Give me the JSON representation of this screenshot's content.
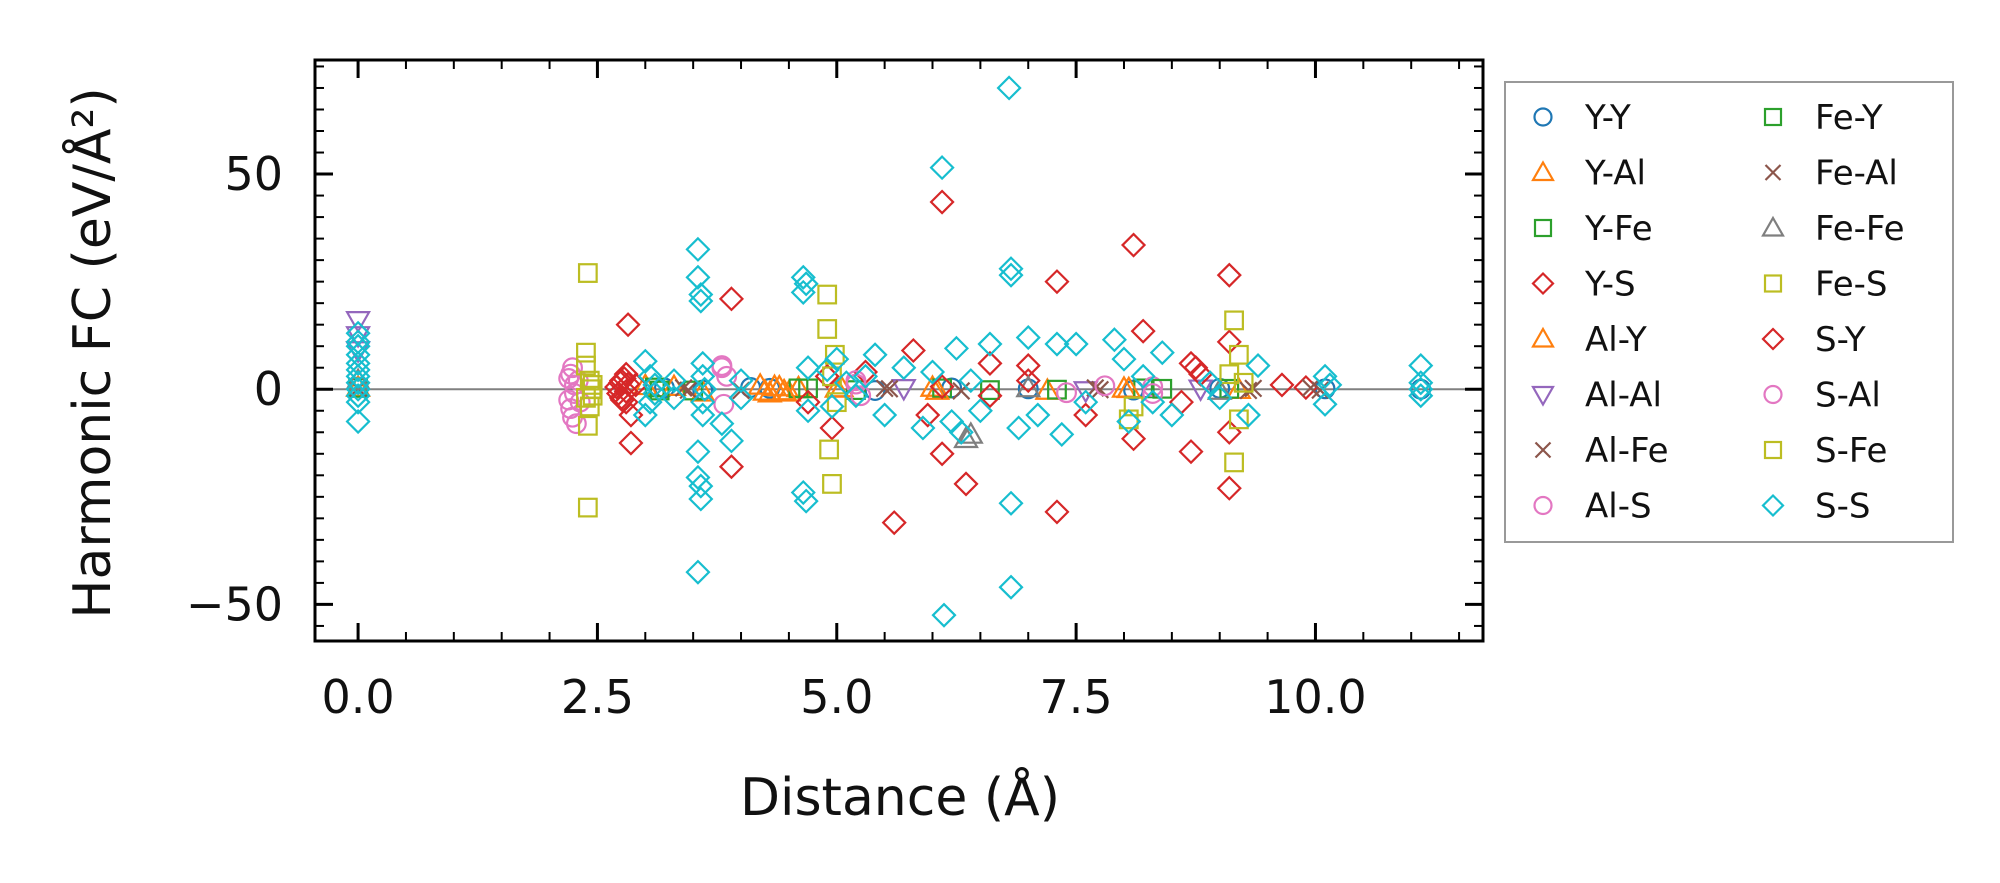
{
  "chart_data": {
    "type": "scatter",
    "xlabel": "Distance (Å)",
    "ylabel": "Harmonic FC (eV/Å²)",
    "xlim": [
      -0.45,
      11.75
    ],
    "ylim": [
      -58.5,
      76.5
    ],
    "xticks": [
      0.0,
      2.5,
      5.0,
      7.5,
      10.0
    ],
    "xtick_labels": [
      "0.0",
      "2.5",
      "5.0",
      "7.5",
      "10.0"
    ],
    "yticks": [
      -50,
      0,
      50
    ],
    "ytick_labels": [
      "−50",
      "0",
      "50"
    ],
    "zero_line": true,
    "legend_position": "outside-right",
    "series": [
      {
        "name": "Y-Y",
        "marker": "circle",
        "color": "#1f77b4",
        "points": [
          [
            0.0,
            0.5
          ],
          [
            3.2,
            0.3
          ],
          [
            3.6,
            -0.2
          ],
          [
            4.1,
            0.4
          ],
          [
            4.3,
            0.2
          ],
          [
            5.4,
            -0.3
          ],
          [
            6.2,
            0.3
          ],
          [
            7.0,
            0.1
          ],
          [
            8.1,
            -0.2
          ],
          [
            9.0,
            0.2
          ],
          [
            10.1,
            0.1
          ],
          [
            11.1,
            0.0
          ]
        ]
      },
      {
        "name": "Y-Al",
        "marker": "triangle-up",
        "color": "#ff7f0e",
        "points": [
          [
            0.0,
            0.4
          ],
          [
            3.0,
            0.8
          ],
          [
            3.3,
            0.6
          ],
          [
            3.6,
            -0.7
          ],
          [
            4.2,
            0.9
          ],
          [
            4.3,
            -0.9
          ],
          [
            4.4,
            0.5
          ],
          [
            4.5,
            -0.7
          ],
          [
            4.6,
            0.3
          ],
          [
            5.0,
            0.2
          ],
          [
            6.0,
            0.4
          ],
          [
            7.2,
            -0.3
          ],
          [
            8.0,
            0.2
          ],
          [
            9.2,
            -0.1
          ]
        ]
      },
      {
        "name": "Y-Fe",
        "marker": "square",
        "color": "#2ca02c",
        "points": [
          [
            0.0,
            0.3
          ],
          [
            3.1,
            0.4
          ],
          [
            3.5,
            -0.3
          ],
          [
            4.6,
            0.2
          ],
          [
            5.2,
            -0.2
          ],
          [
            6.1,
            0.2
          ],
          [
            7.3,
            -0.1
          ],
          [
            8.2,
            0.2
          ],
          [
            9.1,
            0.1
          ]
        ]
      },
      {
        "name": "Y-S",
        "marker": "diamond",
        "color": "#d62728",
        "points": [
          [
            2.75,
            2.0
          ],
          [
            2.75,
            -2.0
          ],
          [
            2.8,
            3.5
          ],
          [
            2.8,
            -3.0
          ],
          [
            2.82,
            15.0
          ],
          [
            2.85,
            -6.0
          ],
          [
            2.85,
            -12.5
          ],
          [
            2.9,
            1.0
          ],
          [
            3.9,
            21.0
          ],
          [
            3.9,
            -18.0
          ],
          [
            4.9,
            3.0
          ],
          [
            4.95,
            -9.0
          ],
          [
            5.3,
            4.0
          ],
          [
            5.6,
            -31.0
          ],
          [
            5.8,
            9.0
          ],
          [
            5.95,
            -6.0
          ],
          [
            6.1,
            43.5
          ],
          [
            6.1,
            -15.0
          ],
          [
            6.35,
            -22.0
          ],
          [
            6.6,
            6.0
          ],
          [
            7.0,
            5.5
          ],
          [
            7.3,
            25.0
          ],
          [
            7.3,
            -28.5
          ],
          [
            7.6,
            -6.0
          ],
          [
            8.1,
            33.5
          ],
          [
            8.1,
            -11.5
          ],
          [
            8.2,
            13.5
          ],
          [
            8.7,
            -14.5
          ],
          [
            8.75,
            5.0
          ],
          [
            9.1,
            26.5
          ],
          [
            9.1,
            -23.0
          ],
          [
            9.1,
            11.0
          ],
          [
            9.1,
            -10.0
          ],
          [
            9.65,
            1.0
          ],
          [
            9.9,
            0.4
          ]
        ]
      },
      {
        "name": "Al-Y",
        "marker": "triangle-up",
        "color": "#ff7f0e",
        "points": [
          [
            4.25,
            -0.5
          ],
          [
            4.35,
            0.6
          ],
          [
            4.45,
            -0.4
          ],
          [
            5.05,
            0.3
          ],
          [
            6.05,
            -0.3
          ],
          [
            8.05,
            0.1
          ]
        ]
      },
      {
        "name": "Al-Al",
        "marker": "triangle-down",
        "color": "#9467bd",
        "points": [
          [
            0.0,
            16.0
          ],
          [
            0.0,
            12.5
          ],
          [
            0.0,
            9.0
          ],
          [
            5.7,
            0.2
          ],
          [
            7.6,
            -0.3
          ],
          [
            8.8,
            0.1
          ]
        ]
      },
      {
        "name": "Al-Fe",
        "marker": "x",
        "color": "#8c564b",
        "points": [
          [
            0.0,
            0.2
          ],
          [
            3.4,
            0.3
          ],
          [
            4.0,
            -0.3
          ],
          [
            5.5,
            0.2
          ],
          [
            6.3,
            -0.4
          ],
          [
            7.7,
            0.3
          ],
          [
            9.3,
            -0.3
          ],
          [
            9.95,
            0.3
          ],
          [
            10.05,
            -0.2
          ]
        ]
      },
      {
        "name": "Al-S",
        "marker": "circle",
        "color": "#e377c2",
        "points": [
          [
            2.2,
            2.5
          ],
          [
            2.2,
            -2.5
          ],
          [
            2.22,
            3.5
          ],
          [
            2.22,
            -4.5
          ],
          [
            2.24,
            5.0
          ],
          [
            2.24,
            -6.5
          ],
          [
            2.26,
            1.0
          ],
          [
            2.26,
            -1.0
          ],
          [
            2.28,
            -8.0
          ],
          [
            2.3,
            2.0
          ],
          [
            2.32,
            -3.0
          ],
          [
            3.8,
            5.5
          ],
          [
            3.85,
            3.0
          ],
          [
            5.2,
            1.2
          ],
          [
            7.4,
            -0.8
          ],
          [
            8.3,
            0.6
          ]
        ]
      },
      {
        "name": "Fe-Y",
        "marker": "square",
        "color": "#2ca02c",
        "points": [
          [
            3.15,
            -0.3
          ],
          [
            4.7,
            0.2
          ],
          [
            6.6,
            -0.2
          ],
          [
            8.4,
            0.1
          ]
        ]
      },
      {
        "name": "Fe-Al",
        "marker": "x",
        "color": "#8c564b",
        "points": [
          [
            3.45,
            -0.2
          ],
          [
            5.55,
            0.1
          ],
          [
            7.75,
            -0.1
          ],
          [
            9.35,
            0.2
          ]
        ]
      },
      {
        "name": "Fe-Fe",
        "marker": "triangle-up",
        "color": "#7f7f7f",
        "points": [
          [
            0.0,
            2.0
          ],
          [
            6.35,
            -11.5
          ],
          [
            6.4,
            -10.5
          ],
          [
            7.0,
            0.3
          ],
          [
            9.0,
            -0.3
          ]
        ]
      },
      {
        "name": "Fe-S",
        "marker": "square",
        "color": "#bcbd22",
        "points": [
          [
            2.4,
            27.0
          ],
          [
            2.4,
            -27.5
          ],
          [
            2.38,
            8.5
          ],
          [
            2.38,
            5.5
          ],
          [
            2.38,
            -2.0
          ],
          [
            2.4,
            -8.5
          ],
          [
            2.42,
            2.0
          ],
          [
            2.42,
            -4.0
          ],
          [
            2.44,
            0.0
          ],
          [
            4.9,
            22.0
          ],
          [
            4.9,
            14.0
          ],
          [
            4.92,
            -14.0
          ],
          [
            4.95,
            -22.0
          ],
          [
            4.98,
            8.0
          ],
          [
            8.05,
            -7.0
          ],
          [
            9.15,
            16.0
          ],
          [
            9.15,
            -17.0
          ],
          [
            9.2,
            8.0
          ],
          [
            9.2,
            -7.0
          ],
          [
            9.25,
            1.5
          ]
        ]
      },
      {
        "name": "S-Y",
        "marker": "diamond",
        "color": "#d62728",
        "points": [
          [
            2.7,
            0.5
          ],
          [
            2.72,
            -1.0
          ],
          [
            2.74,
            1.5
          ],
          [
            2.76,
            -2.5
          ],
          [
            2.78,
            2.5
          ],
          [
            2.8,
            -0.5
          ],
          [
            2.82,
            1.2
          ],
          [
            4.7,
            -3.0
          ],
          [
            6.1,
            0.6
          ],
          [
            6.6,
            -1.5
          ],
          [
            7.0,
            2.0
          ],
          [
            8.6,
            -3.0
          ],
          [
            8.7,
            6.0
          ],
          [
            8.8,
            3.5
          ]
        ]
      },
      {
        "name": "S-Al",
        "marker": "circle",
        "color": "#e377c2",
        "points": [
          [
            3.8,
            5.0
          ],
          [
            3.82,
            -3.5
          ],
          [
            5.2,
            2.0
          ],
          [
            5.25,
            -1.5
          ],
          [
            7.8,
            0.8
          ],
          [
            8.3,
            -1.0
          ]
        ]
      },
      {
        "name": "S-Fe",
        "marker": "square",
        "color": "#bcbd22",
        "points": [
          [
            2.45,
            1.0
          ],
          [
            2.45,
            -1.5
          ],
          [
            4.95,
            3.0
          ],
          [
            5.0,
            -3.0
          ],
          [
            8.1,
            -4.0
          ],
          [
            9.1,
            3.5
          ]
        ]
      },
      {
        "name": "S-S",
        "marker": "diamond",
        "color": "#17becf",
        "points": [
          [
            0.0,
            13.0
          ],
          [
            0.0,
            11.0
          ],
          [
            0.0,
            10.0
          ],
          [
            0.0,
            8.0
          ],
          [
            0.0,
            6.0
          ],
          [
            0.0,
            4.5
          ],
          [
            0.0,
            3.0
          ],
          [
            0.0,
            1.5
          ],
          [
            0.0,
            0.0
          ],
          [
            0.0,
            -1.5
          ],
          [
            0.0,
            -3.0
          ],
          [
            0.0,
            -7.5
          ],
          [
            3.0,
            6.5
          ],
          [
            3.0,
            -6.0
          ],
          [
            3.05,
            3.0
          ],
          [
            3.05,
            -3.0
          ],
          [
            3.1,
            1.0
          ],
          [
            3.1,
            -1.0
          ],
          [
            3.3,
            2.0
          ],
          [
            3.3,
            -2.0
          ],
          [
            3.55,
            32.5
          ],
          [
            3.55,
            26.0
          ],
          [
            3.58,
            22.0
          ],
          [
            3.58,
            20.5
          ],
          [
            3.55,
            -14.5
          ],
          [
            3.55,
            -20.5
          ],
          [
            3.58,
            -22.5
          ],
          [
            3.58,
            -25.5
          ],
          [
            3.55,
            -42.5
          ],
          [
            3.6,
            6.0
          ],
          [
            3.6,
            3.0
          ],
          [
            3.6,
            -3.0
          ],
          [
            3.6,
            -6.0
          ],
          [
            3.62,
            0.0
          ],
          [
            3.8,
            -8.0
          ],
          [
            3.9,
            -12.0
          ],
          [
            4.0,
            2.0
          ],
          [
            4.0,
            -2.0
          ],
          [
            4.65,
            26.0
          ],
          [
            4.68,
            24.5
          ],
          [
            4.65,
            22.5
          ],
          [
            4.65,
            -24.0
          ],
          [
            4.68,
            -26.0
          ],
          [
            4.7,
            5.0
          ],
          [
            4.7,
            -5.0
          ],
          [
            4.9,
            4.5
          ],
          [
            4.95,
            -4.0
          ],
          [
            5.0,
            7.0
          ],
          [
            5.1,
            1.5
          ],
          [
            5.2,
            -1.5
          ],
          [
            5.3,
            3.0
          ],
          [
            5.4,
            8.0
          ],
          [
            5.5,
            -6.0
          ],
          [
            5.7,
            5.0
          ],
          [
            5.9,
            -9.0
          ],
          [
            6.0,
            4.0
          ],
          [
            6.1,
            51.5
          ],
          [
            6.12,
            -52.5
          ],
          [
            6.2,
            -7.5
          ],
          [
            6.25,
            9.5
          ],
          [
            6.3,
            -10.0
          ],
          [
            6.4,
            2.0
          ],
          [
            6.5,
            -5.0
          ],
          [
            6.6,
            10.5
          ],
          [
            6.8,
            70.0
          ],
          [
            6.82,
            28.0
          ],
          [
            6.82,
            26.5
          ],
          [
            6.82,
            -26.5
          ],
          [
            6.82,
            -46.0
          ],
          [
            6.9,
            -9.0
          ],
          [
            7.0,
            12.0
          ],
          [
            7.1,
            -6.0
          ],
          [
            7.3,
            10.5
          ],
          [
            7.35,
            -10.5
          ],
          [
            7.5,
            10.5
          ],
          [
            7.6,
            -3.0
          ],
          [
            7.9,
            11.5
          ],
          [
            8.0,
            7.0
          ],
          [
            8.05,
            -7.5
          ],
          [
            8.2,
            3.0
          ],
          [
            8.3,
            -3.0
          ],
          [
            8.4,
            8.5
          ],
          [
            8.5,
            -6.0
          ],
          [
            8.9,
            1.5
          ],
          [
            9.0,
            -2.0
          ],
          [
            9.3,
            -6.0
          ],
          [
            9.4,
            5.5
          ],
          [
            10.1,
            3.0
          ],
          [
            10.1,
            -3.5
          ],
          [
            10.15,
            1.0
          ],
          [
            11.1,
            5.5
          ],
          [
            11.1,
            1.5
          ],
          [
            11.1,
            0.0
          ],
          [
            11.1,
            -1.5
          ]
        ]
      }
    ],
    "legend_columns": [
      [
        "Y-Y",
        "Y-Al",
        "Y-Fe",
        "Y-S",
        "Al-Y",
        "Al-Al",
        "Al-Fe",
        "Al-S"
      ],
      [
        "Fe-Y",
        "Fe-Al",
        "Fe-Fe",
        "Fe-S",
        "S-Y",
        "S-Al",
        "S-Fe",
        "S-S"
      ]
    ]
  }
}
